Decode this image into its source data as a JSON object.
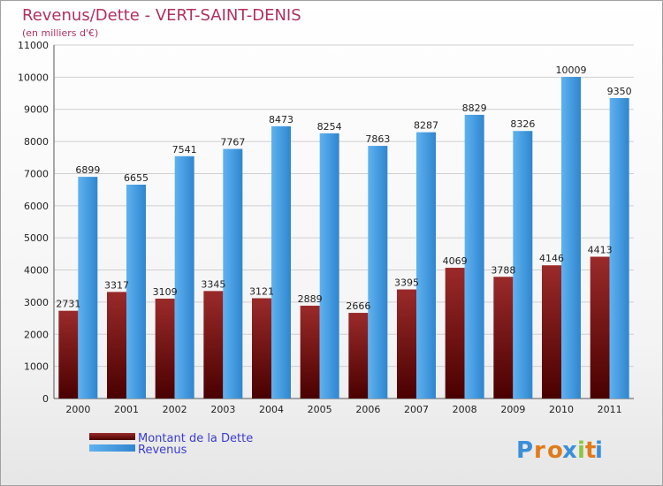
{
  "chart_data": {
    "type": "bar",
    "title": "Revenus/Dette - VERT-SAINT-DENIS",
    "subtitle": "(en milliers d'€)",
    "categories": [
      "2000",
      "2001",
      "2002",
      "2003",
      "2004",
      "2005",
      "2006",
      "2007",
      "2008",
      "2009",
      "2010",
      "2011"
    ],
    "series": [
      {
        "name": "Montant de la Dette",
        "color": "#7a1a1a",
        "values": [
          2731,
          3317,
          3109,
          3345,
          3121,
          2889,
          2666,
          3395,
          4069,
          3788,
          4146,
          4413
        ]
      },
      {
        "name": "Revenus",
        "color": "#4aa3e8",
        "values": [
          6899,
          6655,
          7541,
          7767,
          8473,
          8254,
          7863,
          8287,
          8829,
          8326,
          10009,
          9350
        ]
      }
    ],
    "ylim": [
      0,
      11000
    ],
    "yticks": [
      0,
      1000,
      2000,
      3000,
      4000,
      5000,
      6000,
      7000,
      8000,
      9000,
      10000,
      11000
    ],
    "grid": true,
    "legend_position": "bottom-left"
  },
  "logo": {
    "text": "Proxiti",
    "letters": [
      "P",
      "r",
      "o",
      "x",
      "i",
      "t",
      "i"
    ],
    "colors": [
      "#3a8fd9",
      "#e07b1a",
      "#e07b1a",
      "#3a8fd9",
      "#8cc63f",
      "#e07b1a",
      "#3a8fd9"
    ]
  }
}
